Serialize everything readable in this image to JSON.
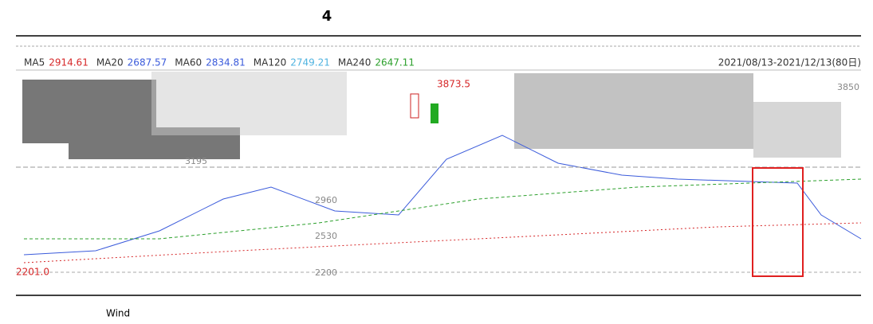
{
  "title": "4",
  "legend": [
    {
      "name": "MA5",
      "value": "2914.61",
      "color": "#d62728"
    },
    {
      "name": "MA20",
      "value": "2687.57",
      "color": "#3b5bdb"
    },
    {
      "name": "MA60",
      "value": "2834.81",
      "color": "#3b5bdb"
    },
    {
      "name": "MA120",
      "value": "2749.21",
      "color": "#4fb3e0"
    },
    {
      "name": "MA240",
      "value": "2647.11",
      "color": "#2ca02c"
    }
  ],
  "date_range": "2021/08/13-2021/12/13(80日)",
  "price_labels": {
    "high": "3873.5",
    "low": "2201.0",
    "right": "3850",
    "a": "3195",
    "b": "2960",
    "c": "2530",
    "d": "2200"
  },
  "source": "Wind"
}
